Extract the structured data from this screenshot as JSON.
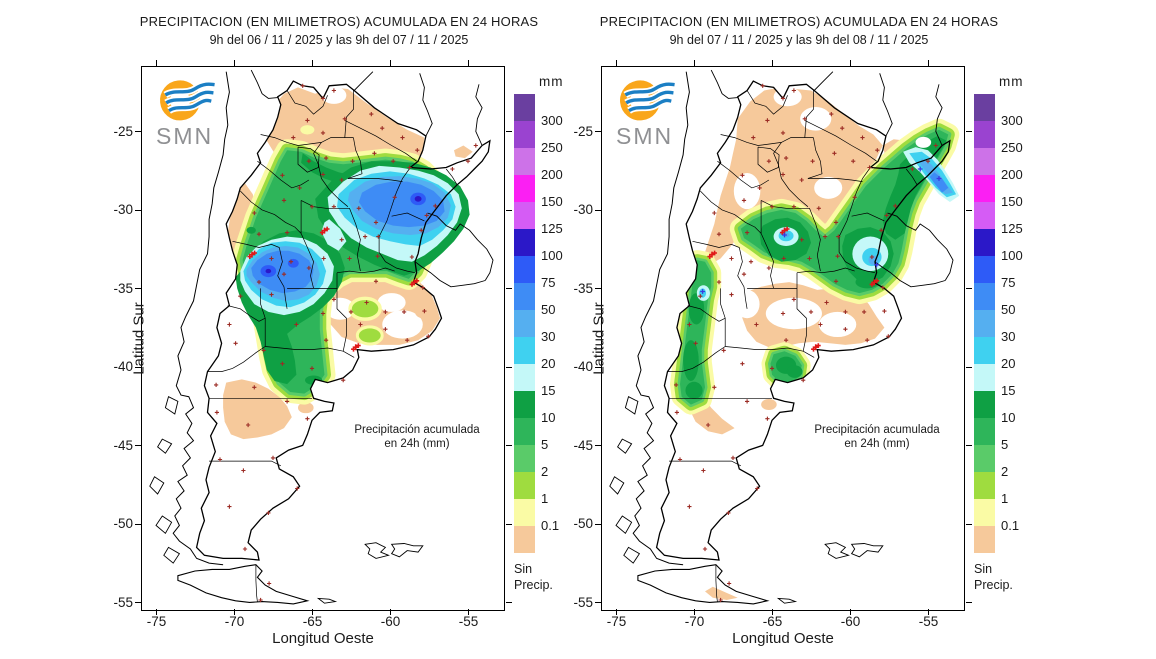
{
  "panels": [
    {
      "title": "PRECIPITACION (EN MILIMETROS) ACUMULADA EN 24 HORAS",
      "subtitle": "9h del 06 / 11 / 2025  y las 9h del 07 / 11 / 2025",
      "logo_text": "SMN",
      "annotation_line1": "Precipitación acumulada",
      "annotation_line2": "en 24h (mm)"
    },
    {
      "title": "PRECIPITACION (EN MILIMETROS) ACUMULADA EN 24 HORAS",
      "subtitle": "9h del 07 / 11 / 2025  y las 9h del 08 / 11 / 2025",
      "logo_text": "SMN",
      "annotation_line1": "Precipitación acumulada",
      "annotation_line2": "en 24h (mm)"
    }
  ],
  "axes": {
    "x_label": "Longitud Oeste",
    "y_label": "Latitud Sur",
    "x_ticks": [
      "-75",
      "-70",
      "-65",
      "-60",
      "-55"
    ],
    "y_ticks": [
      "-25",
      "-30",
      "-35",
      "-40",
      "-45",
      "-50",
      "-55"
    ]
  },
  "legend": {
    "unit": "mm",
    "labels": [
      "300",
      "250",
      "200",
      "150",
      "125",
      "100",
      "75",
      "50",
      "30",
      "20",
      "15",
      "10",
      "5",
      "2",
      "1",
      "0.1"
    ],
    "colors": [
      "#6a3fa0",
      "#9a43d0",
      "#cd72e8",
      "#fb1ff3",
      "#d55cf5",
      "#2b18c8",
      "#2e5bf7",
      "#3e8cf5",
      "#55aff0",
      "#3fd1f0",
      "#c4f8f8",
      "#0fa044",
      "#2eb55a",
      "#5acb69",
      "#9fdc3f",
      "#fafba5",
      "#f6c99b"
    ],
    "no_precip_line1": "Sin",
    "no_precip_line2": "Precip."
  },
  "map": {
    "station_marker_color": "#9b2b24",
    "cluster_marker_color": "#e01818",
    "blue_marker_color": "#3a3ae0",
    "border_color": "#000000"
  },
  "logo_colors": {
    "ring": "#f9a61a",
    "waves": "#1b7fc4"
  }
}
